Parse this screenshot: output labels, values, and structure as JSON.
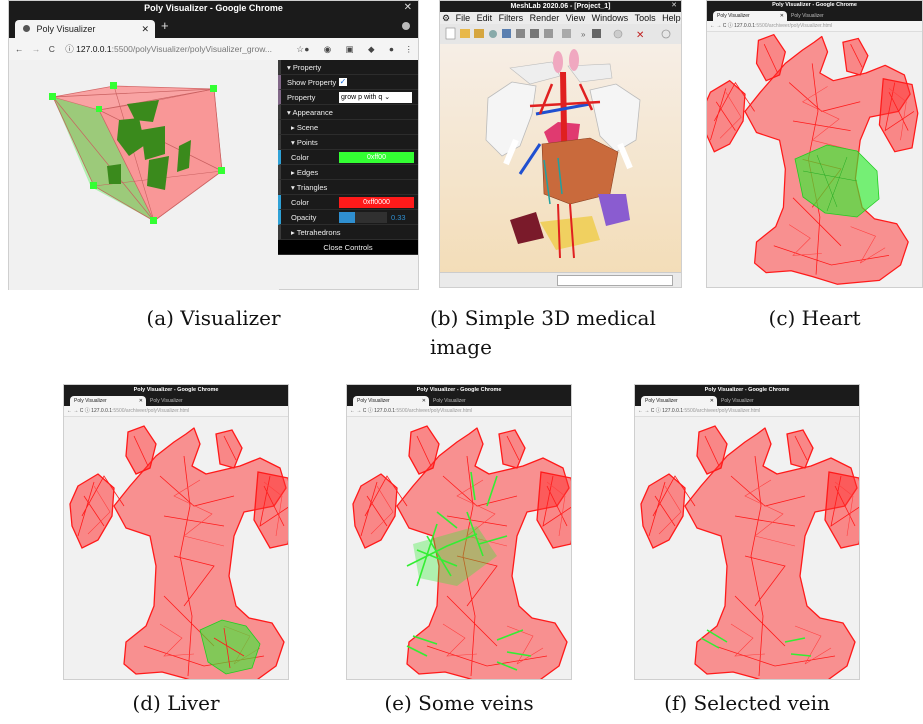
{
  "panels": [
    {
      "window_title": "Poly Visualizer - Google Chrome",
      "tab": "Poly Visualizer",
      "url_host": "127.0.0.1",
      "url_rest": ":5500/polyVisualizer/polyVisualizer_grow...",
      "caption": "(a) Visualizer",
      "gui": {
        "property": "Property",
        "show_property": "Show Property",
        "property_label": "Property",
        "property_value": "grow p with q",
        "appearance": "Appearance",
        "scene": "Scene",
        "points": "Points",
        "color_label": "Color",
        "points_color": "0xff00",
        "edges": "Edges",
        "triangles": "Triangles",
        "tri_color": "0xff0000",
        "opacity_label": "Opacity",
        "opacity_value": "0.33",
        "tetrahedrons": "Tetrahedrons",
        "close": "Close Controls"
      }
    },
    {
      "window_title": "MeshLab 2020.06 - [Project_1]",
      "menus": [
        "File",
        "Edit",
        "Filters",
        "Render",
        "View",
        "Windows",
        "Tools",
        "Help"
      ],
      "caption_line1": "(b)  Simple  3D  medical",
      "caption_line2": "image"
    },
    {
      "window_title": "Poly Visualizer - Google Chrome",
      "tab": "Poly Visualizer",
      "tab2": "Poly Visualizer",
      "url_host": "127.0.0.1",
      "url_rest": ":5500/archiveer/polyVisualizer.html",
      "caption": "(c) Heart"
    },
    {
      "window_title": "Poly Visualizer - Google Chrome",
      "tab": "Poly Visualizer",
      "tab2": "Poly Visualizer",
      "url_host": "127.0.0.1",
      "url_rest": ":5500/archiveer/polyVisualizer.html",
      "caption": "(d) Liver"
    },
    {
      "window_title": "Poly Visualizer - Google Chrome",
      "tab": "Poly Visualizer",
      "tab2": "Poly Visualizer",
      "url_host": "127.0.0.1",
      "url_rest": ":5500/archiveer/polyVisualizer.html",
      "caption": "(e) Some veins"
    },
    {
      "window_title": "Poly Visualizer - Google Chrome",
      "tab": "Poly Visualizer",
      "tab2": "Poly Visualizer",
      "url_host": "127.0.0.1",
      "url_rest": ":5500/archiveer/polyVisualizer.html",
      "caption": "(f) Selected vein"
    }
  ],
  "colors": {
    "mesh_red": "#ff2a2a",
    "highlight_green": "#33ee33",
    "points_green": "#33ff33",
    "tri_red": "#ff1a1a",
    "opacity_blue": "#2f8fd0"
  }
}
